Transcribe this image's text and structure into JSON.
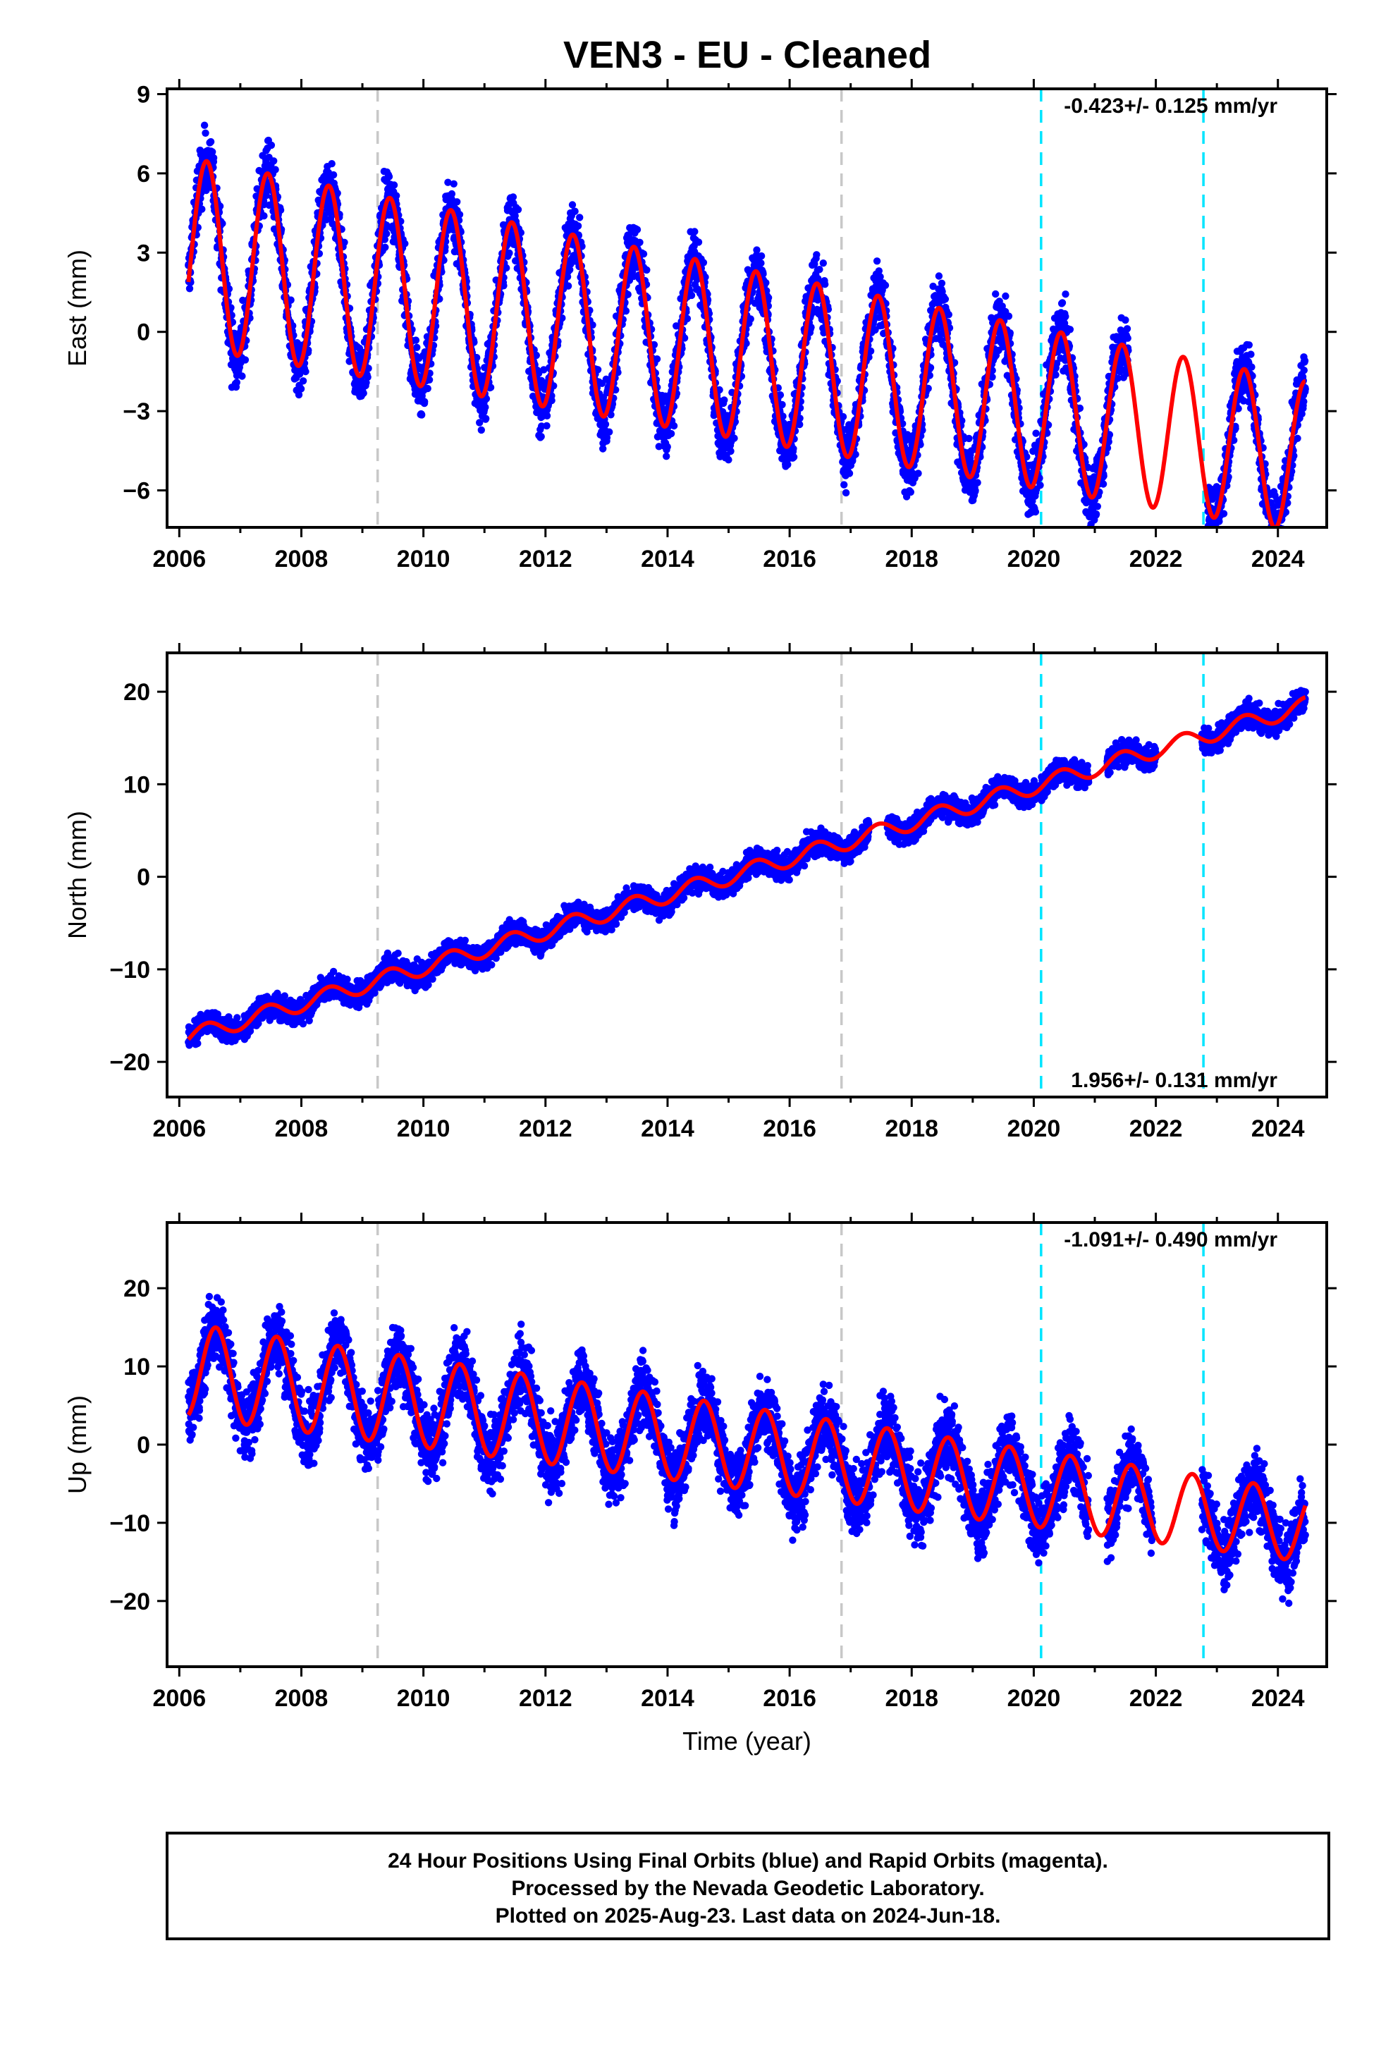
{
  "title": "VEN3  - EU - Cleaned",
  "footer": {
    "lines": [
      "24 Hour Positions Using Final Orbits (blue) and Rapid Orbits (magenta).",
      "Processed by the Nevada Geodetic Laboratory.",
      "Plotted on 2025-Aug-23. Last data on 2024-Jun-18."
    ]
  },
  "colors": {
    "points": "#0000ff",
    "model": "#ff0000",
    "equipment_change": "#c8c8c8",
    "earthquake": "#00e5ff",
    "frame": "#000000"
  },
  "chart_data": [
    {
      "type": "scatter",
      "component": "east",
      "ylabel": "East (mm)",
      "xlabel": "",
      "rate_label": "-0.423+/- 0.125 mm/yr",
      "rate_position": "top-right",
      "xlim": [
        2005.8,
        2024.8
      ],
      "ylim": [
        -7.4,
        9.2
      ],
      "xticks": [
        2006,
        2008,
        2010,
        2012,
        2014,
        2016,
        2018,
        2020,
        2022,
        2024
      ],
      "yticks": [
        -6,
        -3,
        0,
        3,
        6,
        9
      ],
      "grid": false,
      "model": {
        "start": 2006.15,
        "end": 2024.45,
        "offset": 3.0,
        "rate": -0.423,
        "amp0": 3.6,
        "amp_rate": -0.04,
        "peak_phase": 0.45
      },
      "noise": 1.1,
      "gaps": [
        [
          2021.55,
          2022.85
        ]
      ],
      "equipment_changes": [
        2009.25,
        2016.85
      ],
      "earthquakes": [
        2020.12,
        2022.78
      ]
    },
    {
      "type": "scatter",
      "component": "north",
      "ylabel": "North (mm)",
      "xlabel": "",
      "rate_label": "1.956+/- 0.131 mm/yr",
      "rate_position": "bottom-right",
      "xlim": [
        2005.8,
        2024.8
      ],
      "ylim": [
        -23.8,
        24.2
      ],
      "xticks": [
        2006,
        2008,
        2010,
        2012,
        2014,
        2016,
        2018,
        2020,
        2022,
        2024
      ],
      "yticks": [
        -20,
        -10,
        0,
        10,
        20
      ],
      "grid": false,
      "model": {
        "start": 2006.15,
        "end": 2024.45,
        "offset": -17.3,
        "rate": 1.956,
        "amp0": 0.9,
        "amp_rate": 0.0,
        "peak_phase": 0.45
      },
      "noise": 1.2,
      "gaps": [
        [
          2017.3,
          2017.6
        ],
        [
          2020.9,
          2021.2
        ],
        [
          2022.0,
          2022.75
        ]
      ],
      "equipment_changes": [
        2009.25,
        2016.85
      ],
      "earthquakes": [
        2020.12,
        2022.78
      ]
    },
    {
      "type": "scatter",
      "component": "up",
      "ylabel": "Up (mm)",
      "xlabel": "Time (year)",
      "rate_label": "-1.091+/- 0.490 mm/yr",
      "rate_position": "top-right",
      "xlim": [
        2005.8,
        2024.8
      ],
      "ylim": [
        -28.4,
        28.4
      ],
      "xticks": [
        2006,
        2008,
        2010,
        2012,
        2014,
        2016,
        2018,
        2020,
        2022,
        2024
      ],
      "yticks": [
        -20,
        -10,
        0,
        10,
        20
      ],
      "grid": false,
      "model": {
        "start": 2006.15,
        "end": 2024.45,
        "offset": 9.5,
        "rate": -1.091,
        "amp0": 6.0,
        "amp_rate": -0.08,
        "peak_phase": 0.6
      },
      "noise": 4.2,
      "gaps": [
        [
          2020.9,
          2021.2
        ],
        [
          2021.95,
          2022.75
        ]
      ],
      "equipment_changes": [
        2009.25,
        2016.85
      ],
      "earthquakes": [
        2020.12,
        2022.78
      ]
    }
  ]
}
